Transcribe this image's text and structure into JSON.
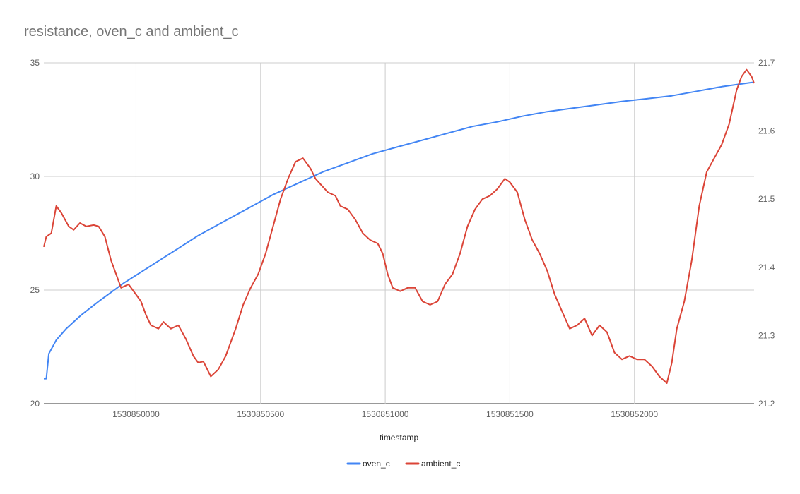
{
  "chart_data": {
    "type": "line",
    "title": "resistance, oven_c and ambient_c",
    "xlabel": "timestamp",
    "ylabel_left": "",
    "ylabel_right": "",
    "x_ticks": [
      1530850000,
      1530850500,
      1530851000,
      1530851500,
      1530852000
    ],
    "xlim": [
      1530849630,
      1530852480
    ],
    "y_left_ticks": [
      20,
      25,
      30,
      35
    ],
    "y_left_lim": [
      20,
      35
    ],
    "y_right_ticks": [
      "21.2",
      "21.3",
      "21.4",
      "21.5",
      "21.6",
      "21.7"
    ],
    "y_right_lim": [
      21.2,
      21.7
    ],
    "grid": true,
    "legend_position": "bottom",
    "series": [
      {
        "name": "oven_c",
        "axis": "left",
        "color": "#4285F4",
        "points": [
          [
            1530849630,
            21.1
          ],
          [
            1530849640,
            21.1
          ],
          [
            1530849650,
            22.2
          ],
          [
            1530849680,
            22.8
          ],
          [
            1530849720,
            23.3
          ],
          [
            1530849780,
            23.9
          ],
          [
            1530849850,
            24.5
          ],
          [
            1530849950,
            25.3
          ],
          [
            1530850050,
            26.0
          ],
          [
            1530850150,
            26.7
          ],
          [
            1530850250,
            27.4
          ],
          [
            1530850350,
            28.0
          ],
          [
            1530850450,
            28.6
          ],
          [
            1530850550,
            29.2
          ],
          [
            1530850650,
            29.7
          ],
          [
            1530850750,
            30.2
          ],
          [
            1530850850,
            30.6
          ],
          [
            1530850950,
            31.0
          ],
          [
            1530851050,
            31.3
          ],
          [
            1530851150,
            31.6
          ],
          [
            1530851250,
            31.9
          ],
          [
            1530851350,
            32.2
          ],
          [
            1530851450,
            32.4
          ],
          [
            1530851550,
            32.65
          ],
          [
            1530851650,
            32.85
          ],
          [
            1530851750,
            33.0
          ],
          [
            1530851850,
            33.15
          ],
          [
            1530851950,
            33.3
          ],
          [
            1530852050,
            33.42
          ],
          [
            1530852150,
            33.55
          ],
          [
            1530852250,
            33.75
          ],
          [
            1530852350,
            33.95
          ],
          [
            1530852480,
            34.15
          ]
        ]
      },
      {
        "name": "ambient_c",
        "axis": "right",
        "color": "#DB4437",
        "points": [
          [
            1530849630,
            21.43
          ],
          [
            1530849640,
            21.445
          ],
          [
            1530849660,
            21.45
          ],
          [
            1530849680,
            21.49
          ],
          [
            1530849700,
            21.48
          ],
          [
            1530849730,
            21.46
          ],
          [
            1530849750,
            21.455
          ],
          [
            1530849775,
            21.465
          ],
          [
            1530849800,
            21.46
          ],
          [
            1530849830,
            21.462
          ],
          [
            1530849850,
            21.46
          ],
          [
            1530849875,
            21.445
          ],
          [
            1530849900,
            21.41
          ],
          [
            1530849920,
            21.39
          ],
          [
            1530849940,
            21.37
          ],
          [
            1530849970,
            21.375
          ],
          [
            1530850000,
            21.36
          ],
          [
            1530850020,
            21.35
          ],
          [
            1530850040,
            21.33
          ],
          [
            1530850060,
            21.315
          ],
          [
            1530850090,
            21.31
          ],
          [
            1530850110,
            21.32
          ],
          [
            1530850140,
            21.31
          ],
          [
            1530850170,
            21.315
          ],
          [
            1530850200,
            21.295
          ],
          [
            1530850230,
            21.27
          ],
          [
            1530850250,
            21.26
          ],
          [
            1530850270,
            21.262
          ],
          [
            1530850300,
            21.24
          ],
          [
            1530850330,
            21.25
          ],
          [
            1530850360,
            21.27
          ],
          [
            1530850400,
            21.31
          ],
          [
            1530850430,
            21.345
          ],
          [
            1530850460,
            21.37
          ],
          [
            1530850490,
            21.39
          ],
          [
            1530850520,
            21.42
          ],
          [
            1530850550,
            21.46
          ],
          [
            1530850580,
            21.5
          ],
          [
            1530850610,
            21.53
          ],
          [
            1530850640,
            21.555
          ],
          [
            1530850670,
            21.56
          ],
          [
            1530850700,
            21.545
          ],
          [
            1530850720,
            21.53
          ],
          [
            1530850745,
            21.52
          ],
          [
            1530850770,
            21.51
          ],
          [
            1530850800,
            21.505
          ],
          [
            1530850820,
            21.49
          ],
          [
            1530850850,
            21.485
          ],
          [
            1530850880,
            21.47
          ],
          [
            1530850910,
            21.45
          ],
          [
            1530850940,
            21.44
          ],
          [
            1530850970,
            21.435
          ],
          [
            1530850990,
            21.42
          ],
          [
            1530851010,
            21.39
          ],
          [
            1530851030,
            21.37
          ],
          [
            1530851060,
            21.365
          ],
          [
            1530851090,
            21.37
          ],
          [
            1530851120,
            21.37
          ],
          [
            1530851150,
            21.35
          ],
          [
            1530851180,
            21.345
          ],
          [
            1530851210,
            21.35
          ],
          [
            1530851240,
            21.375
          ],
          [
            1530851270,
            21.39
          ],
          [
            1530851300,
            21.42
          ],
          [
            1530851330,
            21.46
          ],
          [
            1530851360,
            21.485
          ],
          [
            1530851390,
            21.5
          ],
          [
            1530851420,
            21.505
          ],
          [
            1530851450,
            21.515
          ],
          [
            1530851480,
            21.53
          ],
          [
            1530851500,
            21.525
          ],
          [
            1530851530,
            21.51
          ],
          [
            1530851560,
            21.47
          ],
          [
            1530851590,
            21.44
          ],
          [
            1530851620,
            21.42
          ],
          [
            1530851650,
            21.395
          ],
          [
            1530851680,
            21.36
          ],
          [
            1530851710,
            21.335
          ],
          [
            1530851740,
            21.31
          ],
          [
            1530851770,
            21.315
          ],
          [
            1530851800,
            21.325
          ],
          [
            1530851830,
            21.3
          ],
          [
            1530851860,
            21.315
          ],
          [
            1530851890,
            21.305
          ],
          [
            1530851920,
            21.275
          ],
          [
            1530851950,
            21.265
          ],
          [
            1530851980,
            21.27
          ],
          [
            1530852010,
            21.265
          ],
          [
            1530852040,
            21.265
          ],
          [
            1530852070,
            21.255
          ],
          [
            1530852100,
            21.24
          ],
          [
            1530852130,
            21.23
          ],
          [
            1530852150,
            21.26
          ],
          [
            1530852170,
            21.31
          ],
          [
            1530852200,
            21.35
          ],
          [
            1530852230,
            21.41
          ],
          [
            1530852260,
            21.49
          ],
          [
            1530852290,
            21.54
          ],
          [
            1530852320,
            21.56
          ],
          [
            1530852350,
            21.58
          ],
          [
            1530852380,
            21.61
          ],
          [
            1530852410,
            21.66
          ],
          [
            1530852430,
            21.68
          ],
          [
            1530852450,
            21.69
          ],
          [
            1530852470,
            21.68
          ],
          [
            1530852480,
            21.67
          ]
        ]
      }
    ]
  }
}
